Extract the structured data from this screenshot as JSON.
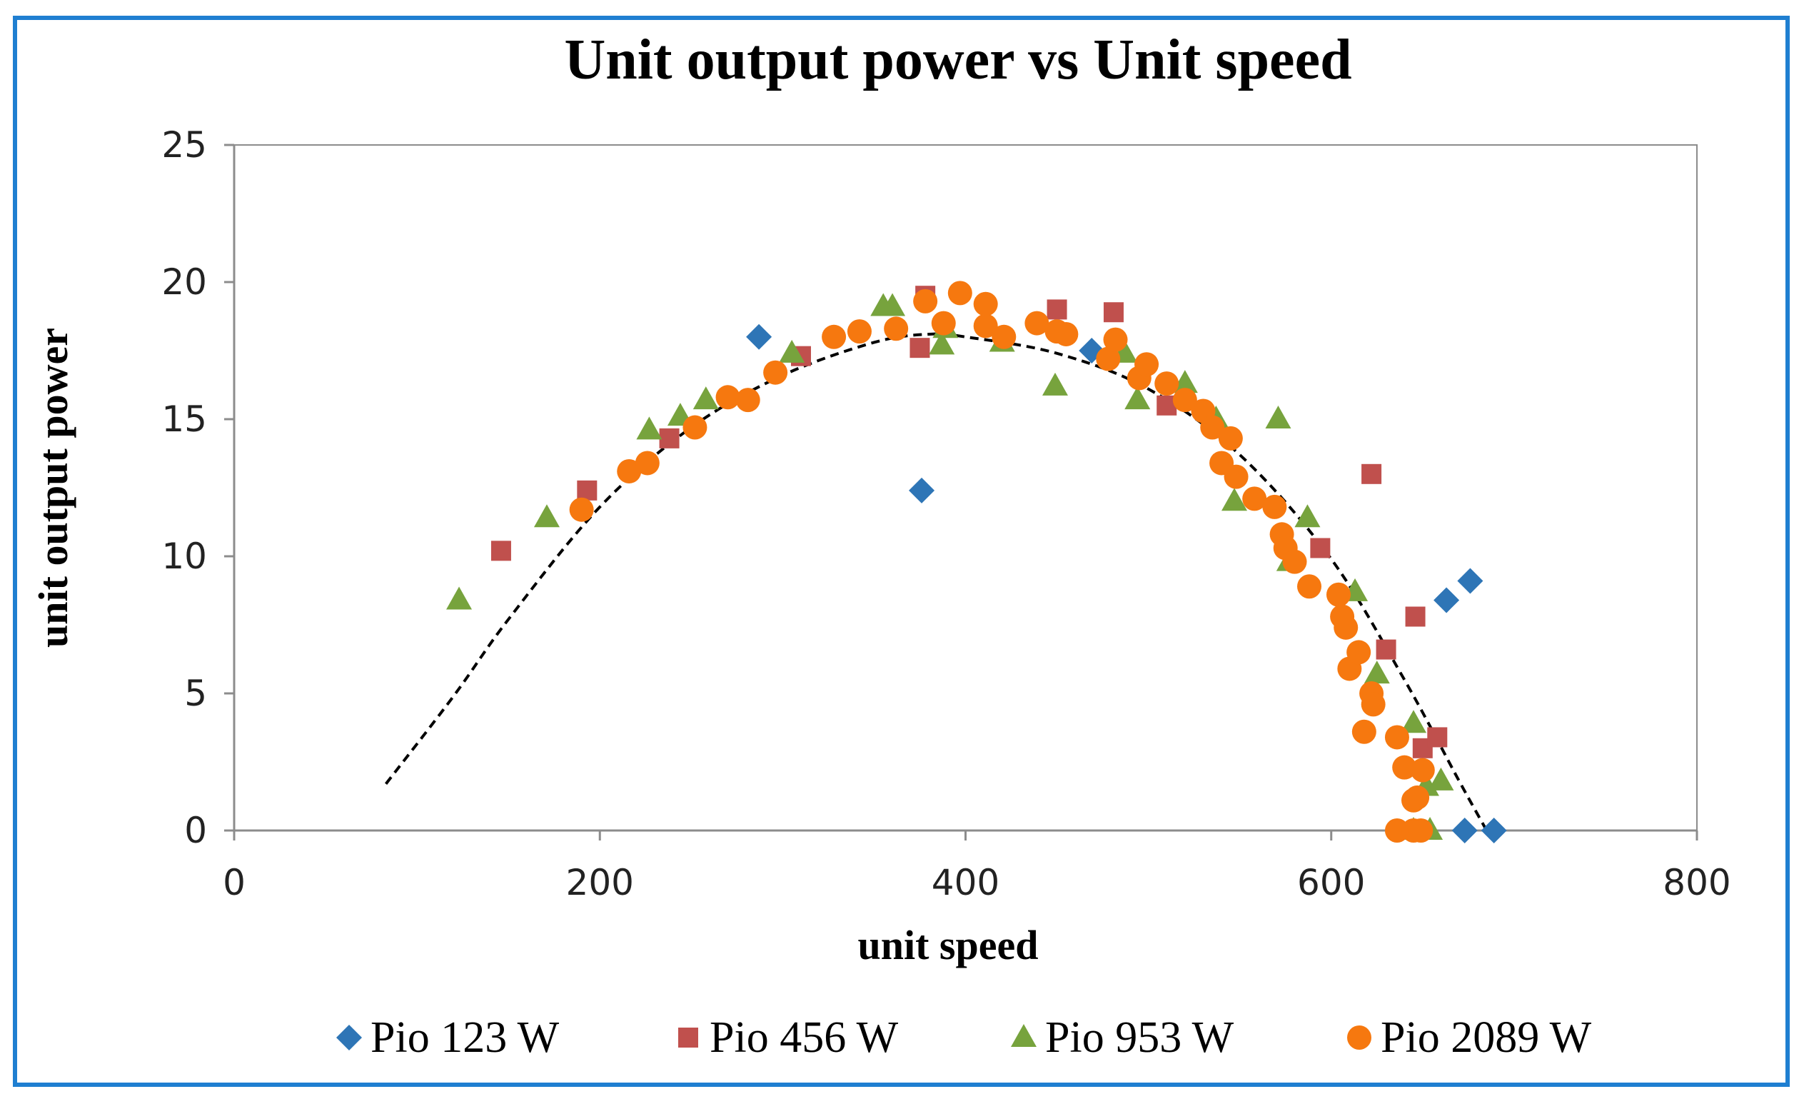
{
  "chart_data": {
    "type": "scatter",
    "title": "Unit output power vs Unit speed",
    "xlabel": "unit speed",
    "ylabel": "unit output power",
    "xlim": [
      0,
      800
    ],
    "ylim": [
      0,
      25
    ],
    "x_ticks": [
      "0",
      "200",
      "400",
      "600",
      "800"
    ],
    "y_ticks": [
      "0",
      "5",
      "10",
      "15",
      "20",
      "25"
    ],
    "grid": false,
    "legend_position": "bottom",
    "series": [
      {
        "name": "Pio 123 W",
        "marker": "diamond",
        "color": "#2e75b6",
        "points": [
          [
            287,
            18.0
          ],
          [
            376,
            12.4
          ],
          [
            469,
            17.5
          ],
          [
            673,
            0
          ],
          [
            689,
            0
          ],
          [
            663,
            8.4
          ],
          [
            676,
            9.1
          ]
        ]
      },
      {
        "name": "Pio 456 W",
        "marker": "square",
        "color": "#c0504d",
        "points": [
          [
            146,
            10.2
          ],
          [
            193,
            12.4
          ],
          [
            238,
            14.3
          ],
          [
            310,
            17.3
          ],
          [
            375,
            17.6
          ],
          [
            378,
            19.5
          ],
          [
            450,
            19.0
          ],
          [
            481,
            18.9
          ],
          [
            510,
            15.5
          ],
          [
            594,
            10.3
          ],
          [
            622,
            13.0
          ],
          [
            630,
            6.6
          ],
          [
            646,
            7.8
          ],
          [
            650,
            3.0
          ],
          [
            658,
            3.4
          ]
        ]
      },
      {
        "name": "Pio 953 W",
        "marker": "triangle",
        "color": "#77a33d",
        "points": [
          [
            123,
            8.4
          ],
          [
            171,
            11.4
          ],
          [
            227,
            14.6
          ],
          [
            244,
            15.1
          ],
          [
            258,
            15.7
          ],
          [
            305,
            17.4
          ],
          [
            355,
            19.1
          ],
          [
            360,
            19.1
          ],
          [
            387,
            17.7
          ],
          [
            389,
            18.3
          ],
          [
            420,
            17.8
          ],
          [
            449,
            16.2
          ],
          [
            487,
            17.4
          ],
          [
            494,
            15.7
          ],
          [
            520,
            16.3
          ],
          [
            537,
            15.0
          ],
          [
            547,
            12.0
          ],
          [
            571,
            15.0
          ],
          [
            577,
            9.8
          ],
          [
            587,
            11.4
          ],
          [
            613,
            8.7
          ],
          [
            625,
            5.7
          ],
          [
            645,
            3.9
          ],
          [
            652,
            1.6
          ],
          [
            660,
            1.8
          ],
          [
            645,
            0
          ],
          [
            654,
            0
          ]
        ]
      },
      {
        "name": "Pio 2089 W",
        "marker": "circle",
        "color": "#f6780f",
        "points": [
          [
            190,
            11.7
          ],
          [
            216,
            13.1
          ],
          [
            226,
            13.4
          ],
          [
            252,
            14.7
          ],
          [
            270,
            15.8
          ],
          [
            281,
            15.7
          ],
          [
            296,
            16.7
          ],
          [
            328,
            18.0
          ],
          [
            342,
            18.2
          ],
          [
            362,
            18.3
          ],
          [
            378,
            19.3
          ],
          [
            388,
            18.5
          ],
          [
            397,
            19.6
          ],
          [
            411,
            18.4
          ],
          [
            411,
            19.2
          ],
          [
            421,
            18.0
          ],
          [
            439,
            18.5
          ],
          [
            450,
            18.2
          ],
          [
            455,
            18.1
          ],
          [
            478,
            17.2
          ],
          [
            482,
            17.9
          ],
          [
            495,
            16.5
          ],
          [
            499,
            17.0
          ],
          [
            510,
            16.3
          ],
          [
            520,
            15.7
          ],
          [
            530,
            15.3
          ],
          [
            535,
            14.7
          ],
          [
            540,
            13.4
          ],
          [
            545,
            14.3
          ],
          [
            548,
            12.9
          ],
          [
            558,
            12.1
          ],
          [
            569,
            11.8
          ],
          [
            573,
            10.8
          ],
          [
            575,
            10.3
          ],
          [
            580,
            9.8
          ],
          [
            588,
            8.9
          ],
          [
            604,
            8.6
          ],
          [
            606,
            7.8
          ],
          [
            608,
            7.4
          ],
          [
            610,
            5.9
          ],
          [
            615,
            6.5
          ],
          [
            618,
            3.6
          ],
          [
            622,
            5.0
          ],
          [
            623,
            4.6
          ],
          [
            636,
            3.4
          ],
          [
            636,
            0
          ],
          [
            640,
            2.3
          ],
          [
            645,
            1.1
          ],
          [
            647,
            1.2
          ],
          [
            650,
            2.2
          ],
          [
            645,
            0
          ],
          [
            649,
            0
          ]
        ]
      }
    ],
    "trendline": {
      "style": "dashed",
      "type": "polynomial",
      "color": "#000000",
      "points": [
        [
          83,
          1.7
        ],
        [
          120,
          4.9
        ],
        [
          150,
          7.7
        ],
        [
          200,
          11.8
        ],
        [
          250,
          14.7
        ],
        [
          300,
          16.6
        ],
        [
          350,
          17.8
        ],
        [
          380,
          18.1
        ],
        [
          400,
          18.0
        ],
        [
          450,
          17.4
        ],
        [
          500,
          16.1
        ],
        [
          550,
          13.7
        ],
        [
          600,
          9.9
        ],
        [
          640,
          5.5
        ],
        [
          670,
          1.8
        ],
        [
          685,
          0
        ]
      ]
    }
  }
}
